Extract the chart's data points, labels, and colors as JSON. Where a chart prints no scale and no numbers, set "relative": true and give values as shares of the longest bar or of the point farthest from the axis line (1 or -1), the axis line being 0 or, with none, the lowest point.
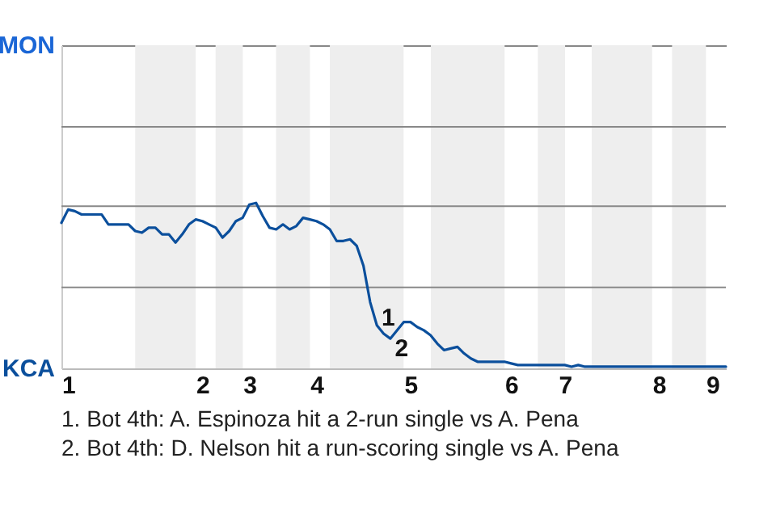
{
  "chart_data": {
    "type": "line",
    "relative": true,
    "categories": [
      null,
      "1",
      null,
      null,
      null,
      null,
      null,
      null,
      null,
      null,
      null,
      null,
      null,
      null,
      null,
      null,
      null,
      null,
      null,
      null,
      null,
      "2",
      null,
      null,
      null,
      null,
      null,
      null,
      "3",
      null,
      null,
      null,
      null,
      null,
      null,
      null,
      null,
      null,
      "4",
      null,
      null,
      null,
      null,
      null,
      null,
      null,
      null,
      null,
      null,
      null,
      null,
      null,
      "5",
      null,
      null,
      null,
      null,
      null,
      null,
      null,
      null,
      null,
      null,
      null,
      null,
      null,
      null,
      "6",
      null,
      null,
      null,
      null,
      null,
      null,
      null,
      "7",
      null,
      null,
      null,
      null,
      null,
      null,
      null,
      null,
      null,
      null,
      null,
      null,
      null,
      "8",
      null,
      null,
      null,
      null,
      null,
      null,
      null,
      "9",
      null,
      null
    ],
    "series": [
      {
        "color": "#0b4f9c",
        "values": [
          0.88,
          0.96,
          0.95,
          0.93,
          0.93,
          0.93,
          0.93,
          0.87,
          0.87,
          0.87,
          0.87,
          0.83,
          0.82,
          0.85,
          0.85,
          0.81,
          0.81,
          0.76,
          0.81,
          0.87,
          0.9,
          0.89,
          0.87,
          0.85,
          0.79,
          0.83,
          0.89,
          0.91,
          0.99,
          1,
          0.92,
          0.85,
          0.84,
          0.87,
          0.84,
          0.86,
          0.91,
          0.9,
          0.89,
          0.87,
          0.84,
          0.77,
          0.77,
          0.78,
          0.74,
          0.62,
          0.4,
          0.26,
          0.21,
          0.18,
          0.23,
          0.28,
          0.28,
          0.25,
          0.23,
          0.2,
          0.15,
          0.11,
          0.12,
          0.13,
          0.09,
          0.06,
          0.04,
          0.04,
          0.04,
          0.04,
          0.04,
          0.03,
          0.02,
          0.02,
          0.02,
          0.02,
          0.02,
          0.02,
          0.02,
          0.02,
          0.01,
          0.02,
          0.01,
          0.01,
          0.01,
          0.01,
          0.01,
          0.01,
          0.01,
          0.01,
          0.01,
          0.01,
          0.01,
          0.01,
          0.01,
          0.01,
          0.01,
          0.01,
          0.01,
          0.01,
          0.01,
          0.01,
          0.01,
          0.01
        ]
      }
    ],
    "annotations": [
      "MON",
      "KCA",
      {
        "text": "1",
        "y": 0.26
      },
      {
        "text": "2",
        "y": 0.18
      },
      "1. Bot 4th: A. Espinoza hit a 2-run single vs A. Pena",
      "2. Bot 4th: D. Nelson hit a run-scoring single vs A. Pena"
    ],
    "ref_lines": [
      {
        "axis": "y",
        "value": 0.49,
        "color": "#888888"
      },
      {
        "axis": "y",
        "value": 0.98,
        "color": "#888888"
      },
      {
        "axis": "y",
        "value": 1.46,
        "color": "#888888"
      }
    ],
    "marker": "none",
    "line_style": "solid"
  }
}
